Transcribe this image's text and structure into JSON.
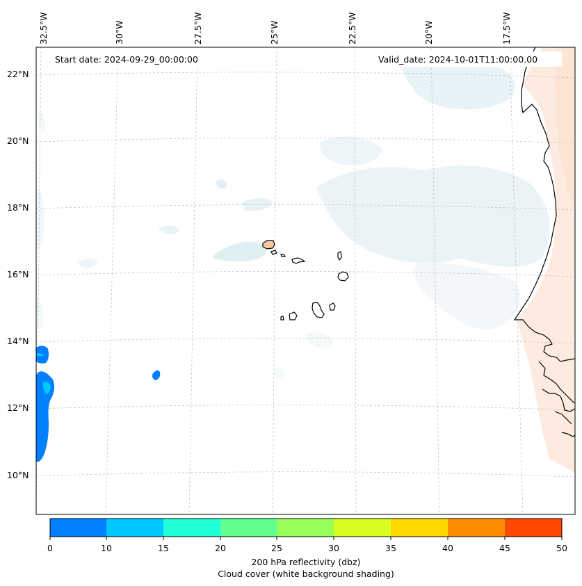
{
  "map": {
    "start_date": "Start date: 2024-09-29_00:00:00",
    "valid_date": "Valid_date: 2024-10-01T11:00:00.00",
    "lon_labels": [
      "32.5°W",
      "30°W",
      "27.5°W",
      "25°W",
      "22.5°W",
      "20°W",
      "17.5°W"
    ],
    "lat_labels": [
      "22°N",
      "20°N",
      "18°N",
      "16°N",
      "14°N",
      "12°N",
      "10°N"
    ]
  },
  "colorbar": {
    "ticks": [
      "0",
      "10",
      "15",
      "20",
      "25",
      "30",
      "35",
      "40",
      "45",
      "50"
    ],
    "colors": [
      "#0080ff",
      "#00c8ff",
      "#20ffd8",
      "#60ff90",
      "#98ff58",
      "#d8ff20",
      "#ffd800",
      "#ff8c00",
      "#ff4800"
    ],
    "label_line1": "200 hPa reflectivity (dbz)",
    "label_line2": "Cloud cover (white background shading)"
  },
  "colors": {
    "cloud_shade": "#d6e9f0",
    "warm_shade": "#fbe1cc",
    "reflectivity_low": "#0080ff",
    "reflectivity_mid": "#00c8ff",
    "coastline": "#000000",
    "gridline": "#bbbbbb"
  }
}
